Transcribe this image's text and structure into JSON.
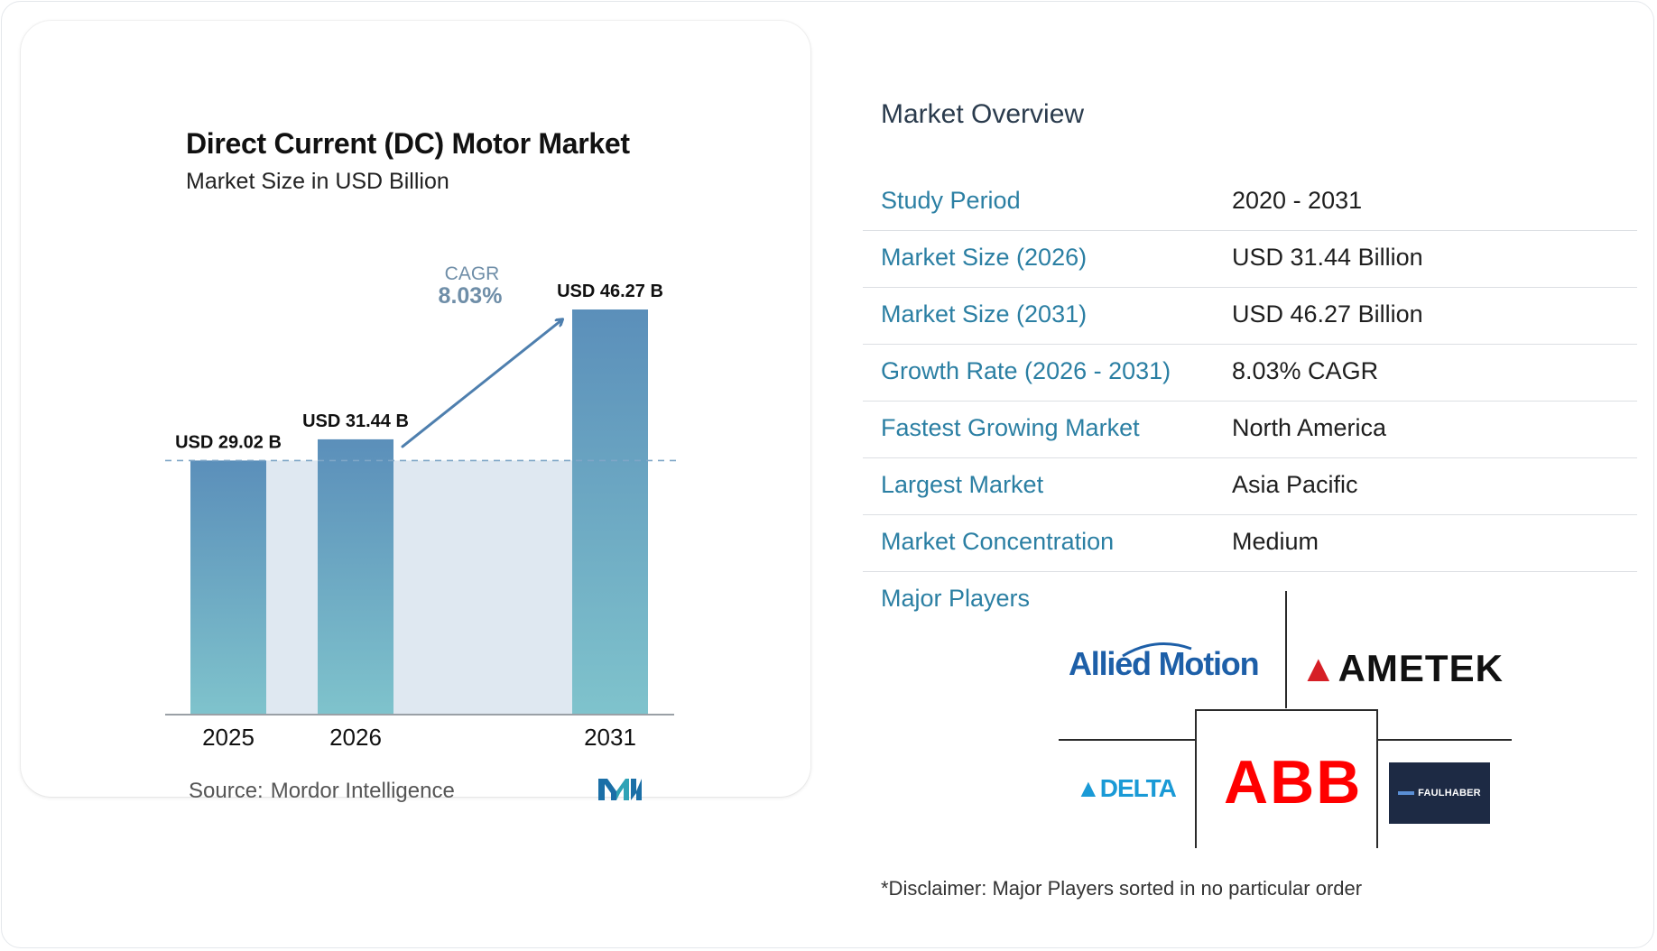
{
  "chart_data": {
    "type": "bar",
    "title": "Direct Current (DC) Motor Market",
    "subtitle": "Market Size in USD Billion",
    "categories": [
      "2025",
      "2026",
      "2031"
    ],
    "values": [
      29.02,
      31.44,
      46.27
    ],
    "value_labels": [
      "USD 29.02 B",
      "USD 31.44 B",
      "USD 46.27 B"
    ],
    "ylim": [
      0,
      46.27
    ],
    "cagr": {
      "label": "CAGR",
      "value": "8.03%"
    },
    "gridlines": false,
    "colors": {
      "bar_top": "#5b8fba",
      "bar_bottom": "#7fc3cc",
      "band": "#dfe8f1",
      "arrow": "#4e7fae"
    }
  },
  "source": {
    "label": "Source:",
    "name": "Mordor Intelligence"
  },
  "overview": {
    "title": "Market Overview",
    "rows": [
      {
        "label": "Study Period",
        "value": "2020 - 2031"
      },
      {
        "label": "Market Size (2026)",
        "value": "USD 31.44 Billion"
      },
      {
        "label": "Market Size (2031)",
        "value": "USD 46.27 Billion"
      },
      {
        "label": "Growth Rate (2026 - 2031)",
        "value": "8.03% CAGR"
      },
      {
        "label": "Fastest Growing Market",
        "value": "North America"
      },
      {
        "label": "Largest Market",
        "value": "Asia Pacific"
      },
      {
        "label": "Market Concentration",
        "value": "Medium"
      }
    ]
  },
  "major_players": {
    "title": "Major Players",
    "logos": {
      "allied": "Allied Motion",
      "ametek": "AMETEK",
      "delta": "DELTA",
      "abb": "ABB",
      "faulhaber": "FAULHABER"
    }
  },
  "disclaimer": "*Disclaimer: Major Players sorted in no particular order",
  "colors": {
    "accent_label": "#2b7fa3",
    "divider": "#dcdfe3"
  }
}
